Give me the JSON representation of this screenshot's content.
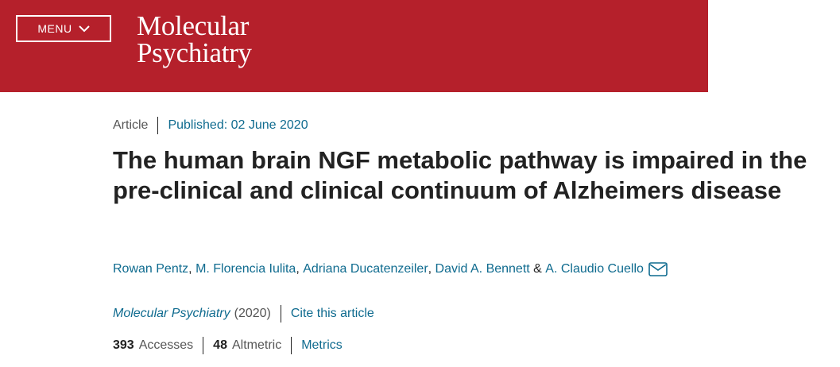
{
  "header": {
    "menu_label": "MENU",
    "brand_line1": "Molecular",
    "brand_line2": "Psychiatry",
    "background_color": "#b5202b"
  },
  "article": {
    "type": "Article",
    "published": "Published: 02 June 2020",
    "title": "The human brain NGF metabolic pathway is impaired in the pre-clinical and clinical continuum of Alzheimers disease",
    "authors": [
      "Rowan Pentz",
      "M. Florencia Iulita",
      "Adriana Ducatenzeiler",
      "David A. Bennett",
      "A. Claudio Cuello"
    ],
    "author_separator": ", ",
    "author_last_joiner": " & ",
    "journal": "Molecular Psychiatry",
    "year": "(2020)",
    "cite_label": "Cite this article",
    "accesses_count": "393",
    "accesses_label": "Accesses",
    "altmetric_count": "48",
    "altmetric_label": "Altmetric",
    "metrics_label": "Metrics"
  },
  "icons": {
    "menu_chevron": "chevron-down-icon",
    "author_mail": "envelope-icon"
  },
  "link_color": "#0f6b8f"
}
